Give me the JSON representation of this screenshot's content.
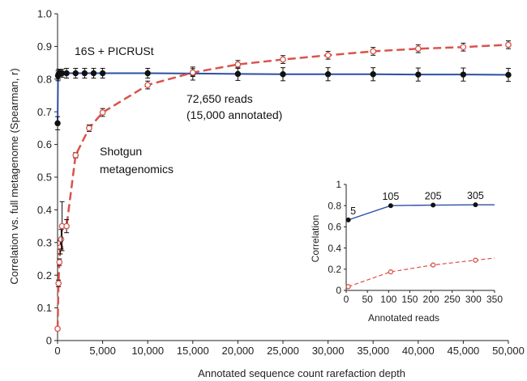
{
  "colors": {
    "picrust": "#2b4fa3",
    "shotgun": "#d9534a",
    "axis": "#222222",
    "marker_dark": "#111111"
  },
  "chart_data": [
    {
      "type": "line",
      "xlabel": "Annotated sequence count rarefaction depth",
      "ylabel": "Correlation vs. full metagenome (Spearman, r)",
      "xlim": [
        0,
        50000
      ],
      "ylim": [
        0,
        1.0
      ],
      "xticks": [
        "0",
        "5,000",
        "10,000",
        "15,000",
        "20,000",
        "25,000",
        "30,000",
        "35,000",
        "40,000",
        "45,000",
        "50,000"
      ],
      "yticks": [
        "0",
        "0.1",
        "0.2",
        "0.3",
        "0.4",
        "0.5",
        "0.6",
        "0.7",
        "0.8",
        "0.9",
        "1.0"
      ],
      "grid": false,
      "series": [
        {
          "name": "16S + PICRUSt",
          "x": [
            5,
            50,
            105,
            205,
            305,
            500,
            1000,
            2000,
            3000,
            4000,
            5000,
            10000,
            15000,
            20000,
            25000,
            30000,
            35000,
            40000,
            45000,
            50000
          ],
          "y": [
            0.665,
            0.81,
            0.815,
            0.818,
            0.818,
            0.818,
            0.818,
            0.818,
            0.818,
            0.818,
            0.818,
            0.818,
            0.817,
            0.816,
            0.815,
            0.815,
            0.815,
            0.814,
            0.814,
            0.813
          ],
          "err": [
            0.02,
            0.015,
            0.015,
            0.012,
            0.012,
            0.012,
            0.015,
            0.015,
            0.015,
            0.015,
            0.015,
            0.015,
            0.02,
            0.02,
            0.02,
            0.02,
            0.02,
            0.02,
            0.02,
            0.02
          ]
        },
        {
          "name": "Shotgun metagenomics",
          "x": [
            5,
            105,
            205,
            305,
            400,
            500,
            1000,
            2000,
            3500,
            5000,
            10000,
            15000,
            20000,
            25000,
            30000,
            35000,
            40000,
            45000,
            50000
          ],
          "y": [
            0.036,
            0.175,
            0.24,
            0.285,
            0.31,
            0.35,
            0.35,
            0.567,
            0.65,
            0.698,
            0.782,
            0.82,
            0.845,
            0.86,
            0.873,
            0.885,
            0.893,
            0.898,
            0.905
          ],
          "err": [
            0.005,
            0.01,
            0.01,
            0.02,
            0.03,
            0.075,
            0.02,
            0.008,
            0.01,
            0.012,
            0.012,
            0.012,
            0.012,
            0.012,
            0.012,
            0.012,
            0.012,
            0.012,
            0.012
          ]
        }
      ],
      "annotations": {
        "picrust_label": "16S + PICRUSt",
        "shotgun_label_line1": "Shotgun",
        "shotgun_label_line2": "metagenomics",
        "reads_line1": "72,650 reads",
        "reads_line2": "(15,000 annotated)"
      }
    },
    {
      "type": "line",
      "xlabel": "Annotated reads",
      "ylabel": "Correlation",
      "xlim": [
        0,
        350
      ],
      "ylim": [
        0,
        1
      ],
      "xticks": [
        "0",
        "50",
        "100",
        "150",
        "200",
        "250",
        "300",
        "350"
      ],
      "yticks": [
        "0",
        "0.2",
        "0.4",
        "0.6",
        "0.8",
        "1"
      ],
      "grid": false,
      "series": [
        {
          "name": "16S + PICRUSt",
          "x": [
            5,
            105,
            205,
            305,
            350
          ],
          "y": [
            0.665,
            0.8,
            0.805,
            0.808,
            0.808
          ],
          "point_labels": [
            "5",
            "105",
            "205",
            "305",
            ""
          ]
        },
        {
          "name": "Shotgun metagenomics",
          "x": [
            5,
            105,
            205,
            305,
            350
          ],
          "y": [
            0.036,
            0.175,
            0.24,
            0.285,
            0.305
          ]
        }
      ]
    }
  ]
}
